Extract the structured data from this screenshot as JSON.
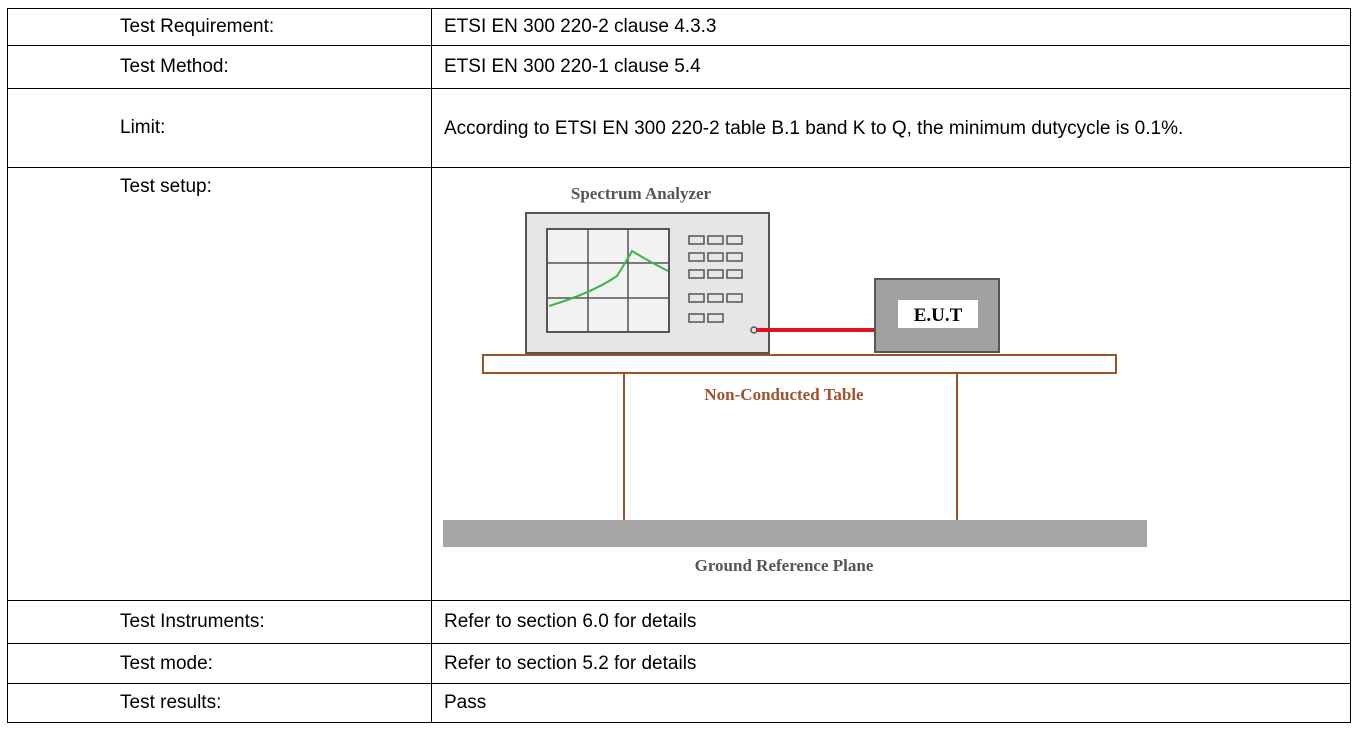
{
  "table": {
    "rows": [
      [
        "Test Requirement:",
        "ETSI EN 300 220-2 clause 4.3.3"
      ],
      [
        "Test Method:",
        "ETSI EN 300 220-1 clause 5.4"
      ],
      [
        "Limit:",
        "According to ETSI EN 300 220-2 table B.1 band K to Q, the minimum dutycycle is 0.1%."
      ],
      [
        "Test setup:"
      ],
      [
        "Test Instruments:",
        "Refer to section 6.0 for details"
      ],
      [
        "Test mode:",
        "Refer to section 5.2 for details"
      ],
      [
        "Test results:",
        "Pass"
      ]
    ]
  },
  "diagram": {
    "analyzer": "Spectrum Analyzer",
    "eut": "E.U.T",
    "table": "Non-Conducted Table",
    "ground": "Ground Reference Plane"
  }
}
